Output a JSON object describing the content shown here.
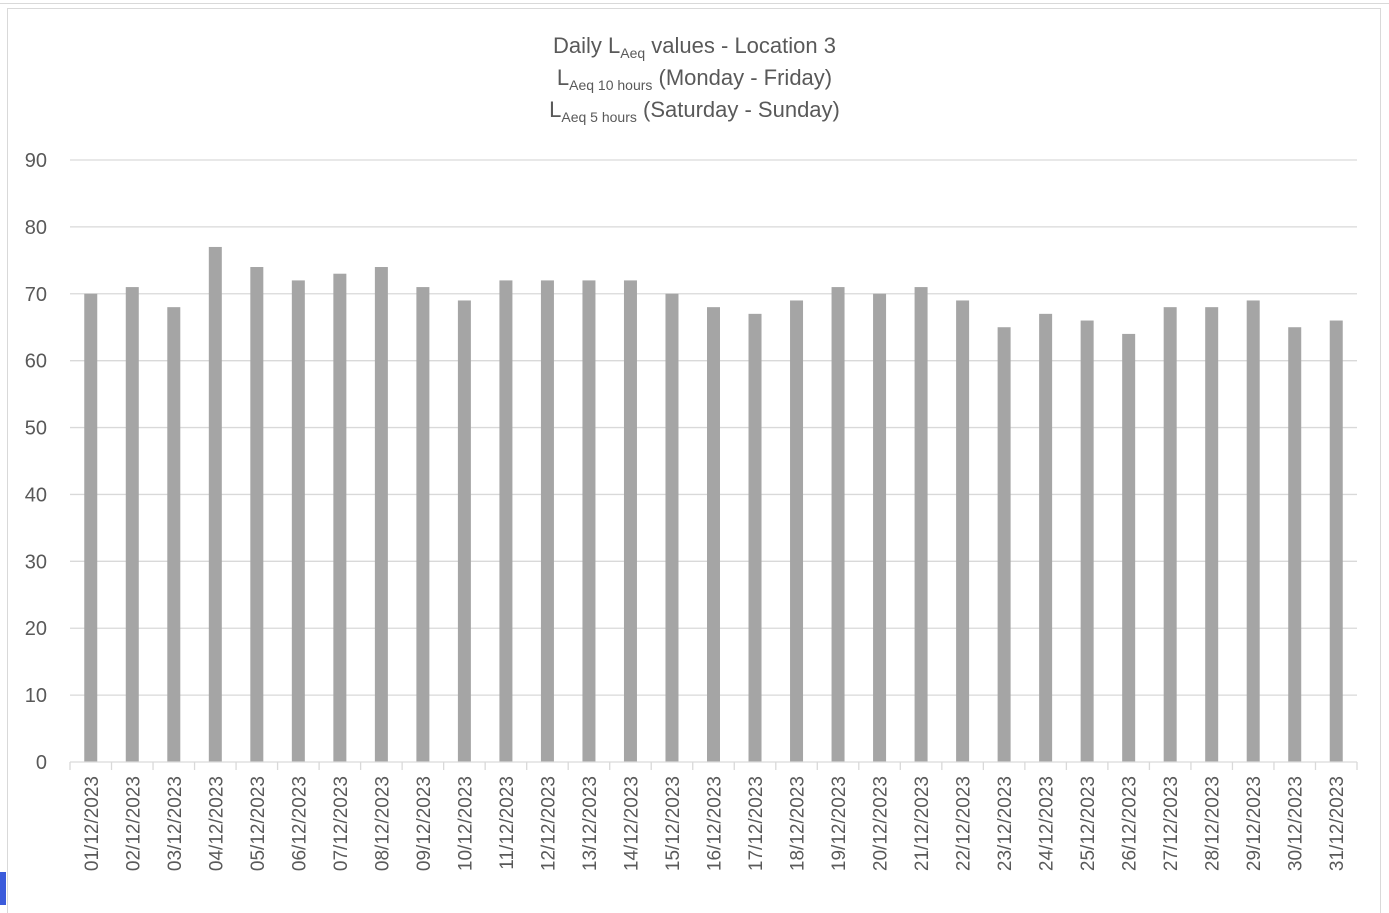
{
  "chart_data": {
    "type": "bar",
    "title_parts": {
      "line1_prefix": "Daily L",
      "line1_sub": "Aeq",
      "line1_suffix": " values - Location 3",
      "line2_prefix": "L",
      "line2_sub": "Aeq 10 hours",
      "line2_suffix": " (Monday - Friday)",
      "line3_prefix": "L",
      "line3_sub": "Aeq 5 hours",
      "line3_suffix": " (Saturday - Sunday)"
    },
    "xlabel": "",
    "ylabel": "",
    "ylim": [
      0,
      90
    ],
    "yticks": [
      0,
      10,
      20,
      30,
      40,
      50,
      60,
      70,
      80,
      90
    ],
    "grid": true,
    "legend": "none",
    "bar_color": "#a5a5a5",
    "categories": [
      "01/12/2023",
      "02/12/2023",
      "03/12/2023",
      "04/12/2023",
      "05/12/2023",
      "06/12/2023",
      "07/12/2023",
      "08/12/2023",
      "09/12/2023",
      "10/12/2023",
      "11/12/2023",
      "12/12/2023",
      "13/12/2023",
      "14/12/2023",
      "15/12/2023",
      "16/12/2023",
      "17/12/2023",
      "18/12/2023",
      "19/12/2023",
      "20/12/2023",
      "21/12/2023",
      "22/12/2023",
      "23/12/2023",
      "24/12/2023",
      "25/12/2023",
      "26/12/2023",
      "27/12/2023",
      "28/12/2023",
      "29/12/2023",
      "30/12/2023",
      "31/12/2023"
    ],
    "values": [
      70,
      71,
      68,
      77,
      74,
      72,
      73,
      74,
      71,
      69,
      72,
      72,
      72,
      72,
      70,
      68,
      67,
      69,
      71,
      70,
      71,
      69,
      65,
      67,
      66,
      64,
      68,
      68,
      69,
      65,
      66
    ]
  }
}
